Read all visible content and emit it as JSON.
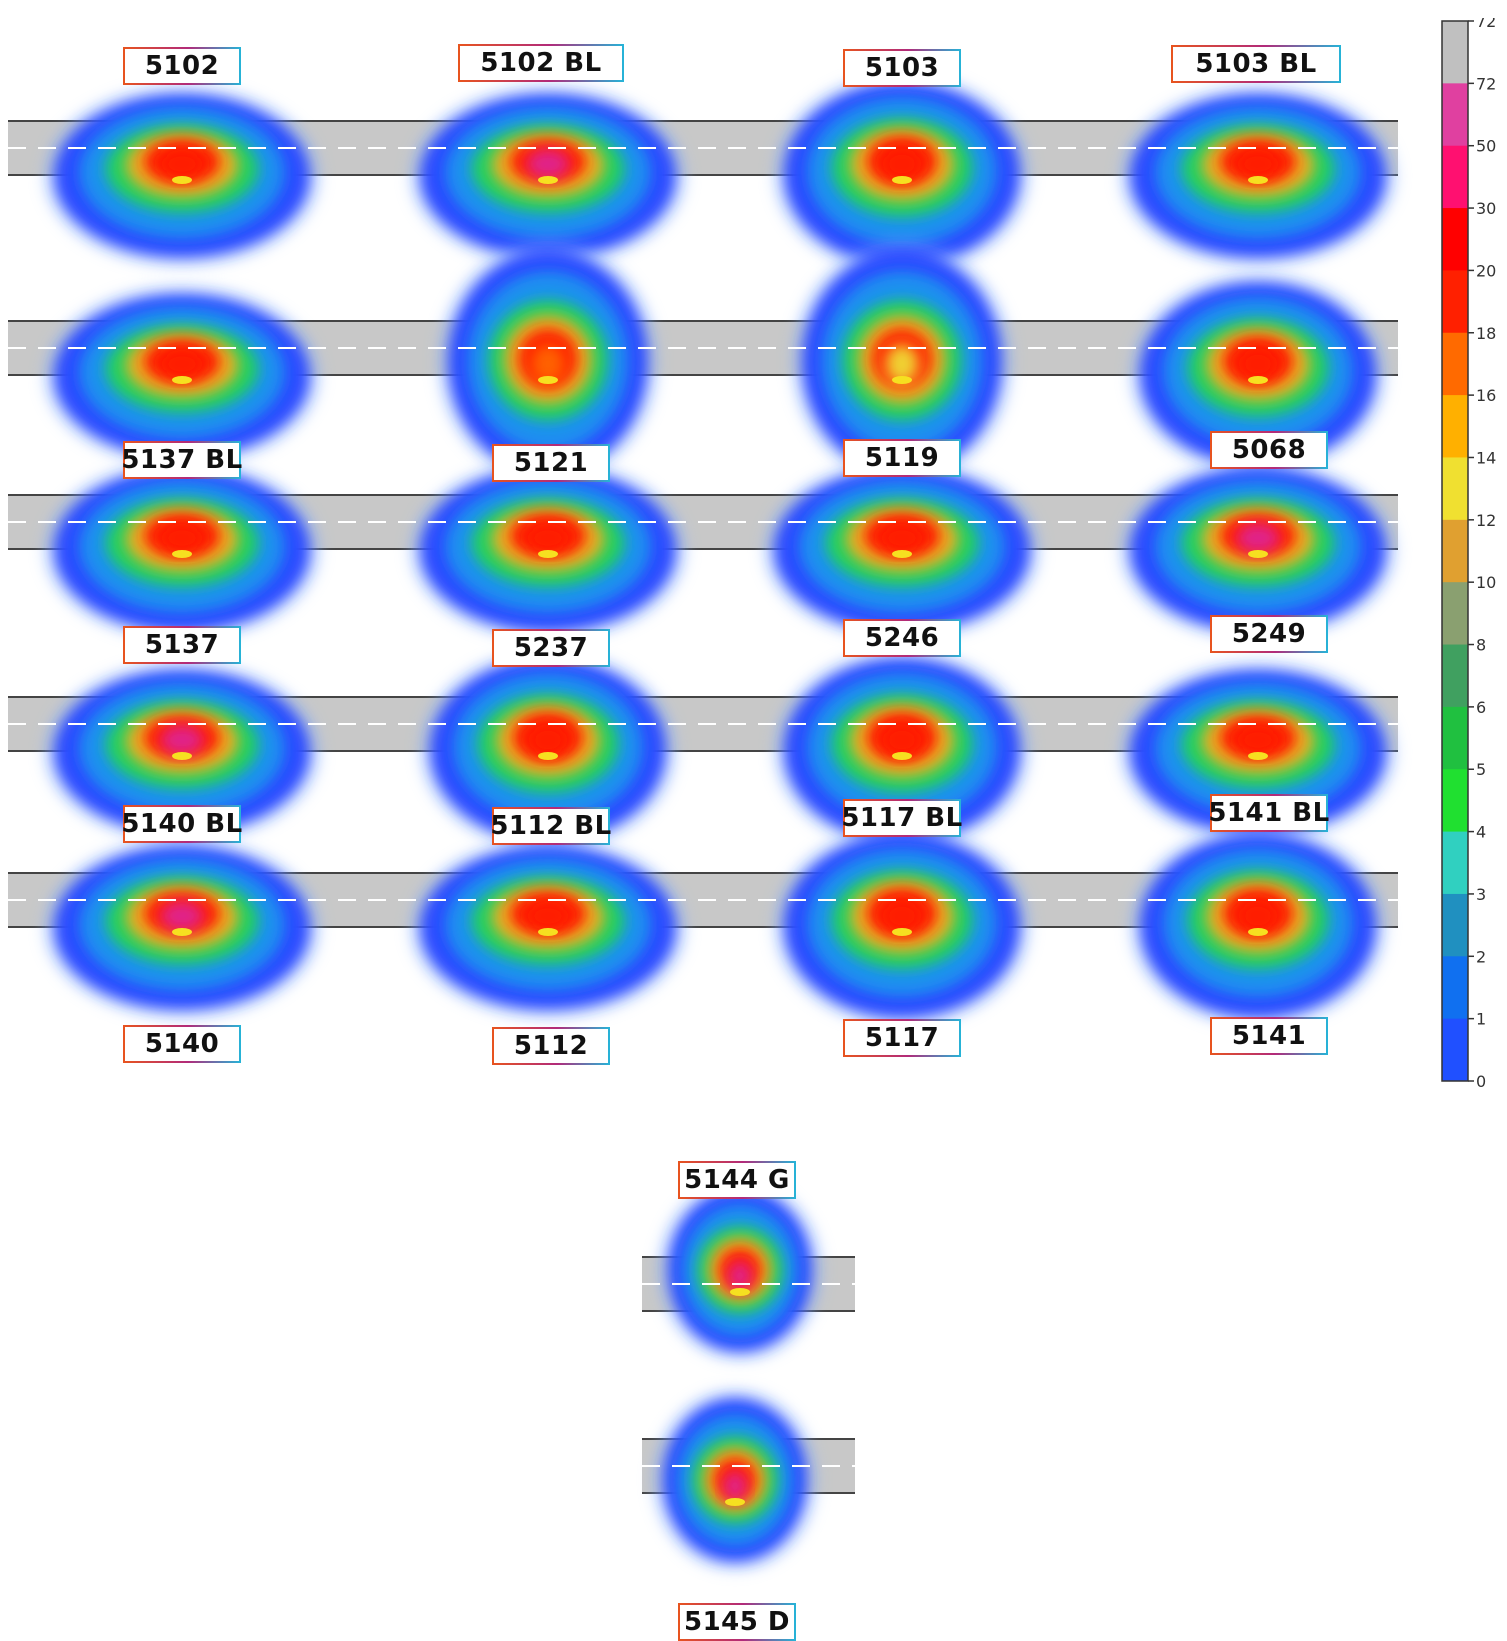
{
  "chart_data": {
    "type": "heatmap",
    "colorbar": {
      "ticks": [
        "72",
        "72",
        "50",
        "30",
        "20",
        "18",
        "16",
        "14",
        "12",
        "10",
        "8",
        "6",
        "5",
        "4",
        "3",
        "2",
        "1",
        "0"
      ],
      "colors": [
        "#c0c0c0",
        "#e040a0",
        "#ff1070",
        "#ff0000",
        "#ff2000",
        "#ff6a00",
        "#ffb000",
        "#f0e030",
        "#e0a030",
        "#8aa070",
        "#40a060",
        "#20c040",
        "#20e030",
        "#30d0c0",
        "#2090c0",
        "#1070f0",
        "#2050ff",
        "#ffffff"
      ]
    },
    "panels": [
      {
        "label": "5102",
        "shape": "wide",
        "core": "red"
      },
      {
        "label": "5102 BL",
        "shape": "wide",
        "core": "magenta"
      },
      {
        "label": "5103",
        "shape": "round",
        "core": "red"
      },
      {
        "label": "5103 BL",
        "shape": "wide",
        "core": "red"
      },
      {
        "label": "5137 BL",
        "shape": "wide",
        "core": "red"
      },
      {
        "label": "5121",
        "shape": "tall",
        "core": "orange"
      },
      {
        "label": "5119",
        "shape": "tall",
        "core": "yellow"
      },
      {
        "label": "5068",
        "shape": "round",
        "core": "red"
      },
      {
        "label": "5137",
        "shape": "wide",
        "core": "red"
      },
      {
        "label": "5237",
        "shape": "wide",
        "core": "red"
      },
      {
        "label": "5246",
        "shape": "wide",
        "core": "red"
      },
      {
        "label": "5249",
        "shape": "wide",
        "core": "magenta"
      },
      {
        "label": "5140 BL",
        "shape": "wide",
        "core": "magenta"
      },
      {
        "label": "5112 BL",
        "shape": "round",
        "core": "red"
      },
      {
        "label": "5117 BL",
        "shape": "round",
        "core": "red"
      },
      {
        "label": "5141 BL",
        "shape": "wide",
        "core": "red"
      },
      {
        "label": "5140",
        "shape": "wide",
        "core": "magenta"
      },
      {
        "label": "5112",
        "shape": "wide",
        "core": "red"
      },
      {
        "label": "5117",
        "shape": "round",
        "core": "red"
      },
      {
        "label": "5141",
        "shape": "round",
        "core": "red"
      },
      {
        "label": "5144 G",
        "shape": "small",
        "core": "magenta"
      },
      {
        "label": "5145 D",
        "shape": "small",
        "core": "magenta"
      }
    ]
  }
}
